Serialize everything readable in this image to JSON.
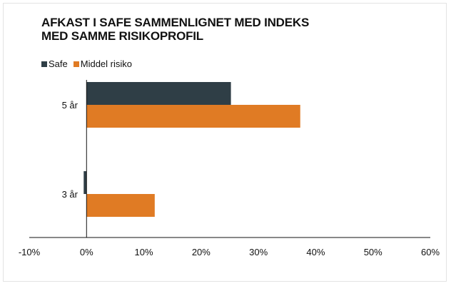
{
  "chart_data": {
    "type": "bar",
    "orientation": "horizontal",
    "title_line1": "AFKAST I SAFE SAMMENLIGNET MED INDEKS",
    "title_line2": "MED SAMME RISIKOPROFIL",
    "categories": [
      "5 år",
      "3 år"
    ],
    "series": [
      {
        "name": "Safe",
        "color": "#2f3e46",
        "values": [
          25.2,
          -0.5
        ]
      },
      {
        "name": "Middel risiko",
        "color": "#e07b24",
        "values": [
          37.3,
          11.9
        ]
      }
    ],
    "xlim": [
      -10,
      60
    ],
    "x_ticks": [
      -10,
      0,
      10,
      20,
      30,
      40,
      50,
      60
    ],
    "x_tick_labels": [
      "-10%",
      "0%",
      "10%",
      "20%",
      "30%",
      "40%",
      "50%",
      "60%"
    ],
    "legend_position": "top-left",
    "grid": false
  }
}
